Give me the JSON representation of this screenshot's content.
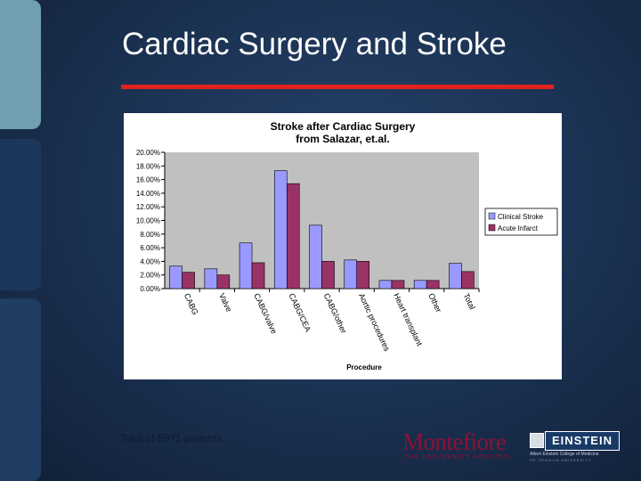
{
  "slide": {
    "title": "Cardiac Surgery and Stroke",
    "footer_note": "Total of 5971 patients"
  },
  "logos": {
    "montefiore": "Montefiore",
    "montefiore_sub": "THE UNIVERSITY HOSPITAL",
    "einstein": "EINSTEIN",
    "einstein_sub": "Albert Einstein College of Medicine",
    "einstein_sub2": "OF YESHIVA UNIVERSITY"
  },
  "colors": {
    "title_rule": "#e0221f",
    "clinical_stroke": "#9999ff",
    "acute_infarct": "#993366",
    "plot_background": "#c0c0c0"
  },
  "chart_data": {
    "type": "bar",
    "title": "Stroke after Cardiac Surgery",
    "subtitle": "from Salazar, et.al.",
    "xlabel": "Procedure",
    "ylabel": "",
    "ylim": [
      0,
      20
    ],
    "y_ticks": [
      "0.00%",
      "2.00%",
      "4.00%",
      "6.00%",
      "8.00%",
      "10.00%",
      "12.00%",
      "14.00%",
      "16.00%",
      "18.00%",
      "20.00%"
    ],
    "grid": false,
    "legend_position": "right",
    "categories": [
      "CABG",
      "Valve",
      "CABG/valve",
      "CABG/CEA",
      "CABG/other",
      "Aortic procedures",
      "Heart transplant",
      "Other",
      "Total"
    ],
    "series": [
      {
        "name": "Clinical Stroke",
        "values": [
          3.3,
          2.9,
          6.7,
          17.3,
          9.3,
          4.2,
          1.2,
          1.2,
          3.7
        ]
      },
      {
        "name": "Acute Infarct",
        "values": [
          2.4,
          2.0,
          3.8,
          15.4,
          4.0,
          4.0,
          1.2,
          1.2,
          2.5
        ]
      }
    ]
  }
}
